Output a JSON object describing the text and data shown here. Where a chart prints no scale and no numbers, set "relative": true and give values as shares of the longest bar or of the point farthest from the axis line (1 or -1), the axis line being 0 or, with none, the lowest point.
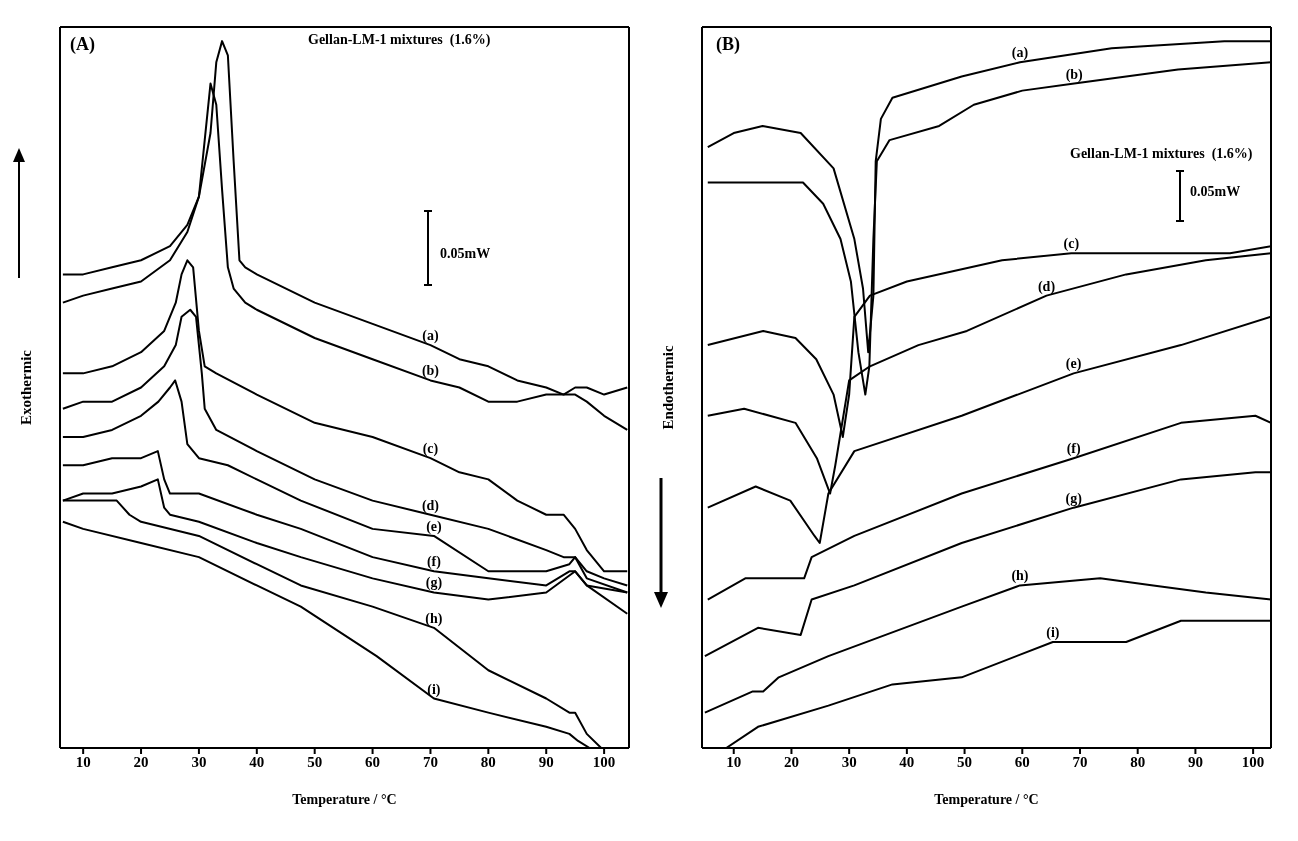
{
  "chart_data": [
    {
      "type": "line",
      "title": "(A)",
      "xlabel": "Temperature / °C",
      "ylabel": "Exothermic",
      "annotations": [
        "Gellan-LM-1 mixtures  (1.6%)",
        "0.05mW"
      ],
      "relative": true,
      "tick_labels": "x",
      "xlim": [
        6,
        104.3
      ],
      "xticks": [
        10,
        20,
        30,
        40,
        50,
        60,
        70,
        80,
        90,
        100
      ],
      "series": [
        {
          "name": "(a)",
          "color": "#000000",
          "x": [
            6.5,
            10,
            15,
            20,
            25,
            28,
            30,
            32,
            33,
            34,
            35,
            36,
            37,
            38,
            40,
            50,
            60,
            70,
            75,
            80,
            85,
            90,
            93,
            95,
            97,
            100,
            104
          ],
          "values": [
            0.67,
            0.67,
            0.68,
            0.69,
            0.71,
            0.74,
            0.78,
            0.87,
            0.97,
            1.0,
            0.98,
            0.83,
            0.69,
            0.68,
            0.67,
            0.63,
            0.6,
            0.57,
            0.55,
            0.54,
            0.52,
            0.51,
            0.5,
            0.51,
            0.51,
            0.5,
            0.51
          ]
        },
        {
          "name": "(b)",
          "color": "#000000",
          "x": [
            6.5,
            10,
            15,
            20,
            25,
            28,
            30,
            31,
            32,
            33,
            34,
            35,
            36,
            38,
            40,
            50,
            60,
            70,
            75,
            80,
            85,
            90,
            93,
            95,
            97,
            100,
            104
          ],
          "values": [
            0.63,
            0.64,
            0.65,
            0.66,
            0.69,
            0.73,
            0.78,
            0.86,
            0.94,
            0.91,
            0.79,
            0.68,
            0.65,
            0.63,
            0.62,
            0.58,
            0.55,
            0.52,
            0.51,
            0.49,
            0.49,
            0.5,
            0.5,
            0.5,
            0.49,
            0.47,
            0.45
          ]
        },
        {
          "name": "(c)",
          "color": "#000000",
          "x": [
            6.5,
            10,
            15,
            20,
            24,
            26,
            27,
            28,
            29,
            30,
            31,
            33,
            40,
            50,
            60,
            70,
            75,
            80,
            85,
            90,
            93,
            95,
            97,
            100,
            104
          ],
          "values": [
            0.53,
            0.53,
            0.54,
            0.56,
            0.59,
            0.63,
            0.67,
            0.69,
            0.68,
            0.59,
            0.54,
            0.53,
            0.5,
            0.46,
            0.44,
            0.41,
            0.39,
            0.38,
            0.35,
            0.33,
            0.33,
            0.31,
            0.28,
            0.25,
            0.25
          ]
        },
        {
          "name": "(d)",
          "color": "#000000",
          "x": [
            6.5,
            10,
            15,
            20,
            24,
            26,
            27,
            28.5,
            29.5,
            30.5,
            31,
            33,
            40,
            50,
            60,
            70,
            80,
            90,
            93,
            95,
            97,
            100,
            104
          ],
          "values": [
            0.48,
            0.49,
            0.49,
            0.51,
            0.54,
            0.57,
            0.61,
            0.62,
            0.61,
            0.53,
            0.48,
            0.45,
            0.42,
            0.38,
            0.35,
            0.33,
            0.31,
            0.28,
            0.27,
            0.27,
            0.25,
            0.24,
            0.23
          ]
        },
        {
          "name": "(e)",
          "color": "#000000",
          "x": [
            6.5,
            10,
            15,
            20,
            23,
            25,
            25.9,
            27,
            28,
            30,
            35,
            40,
            47.6,
            60,
            70.6,
            80,
            90,
            94,
            95,
            97,
            104
          ],
          "values": [
            0.44,
            0.44,
            0.45,
            0.47,
            0.49,
            0.51,
            0.52,
            0.49,
            0.43,
            0.41,
            0.4,
            0.38,
            0.35,
            0.31,
            0.3,
            0.25,
            0.25,
            0.26,
            0.27,
            0.24,
            0.22
          ]
        },
        {
          "name": "(f)",
          "color": "#000000",
          "x": [
            6.5,
            10,
            15,
            20,
            22.9,
            24,
            25,
            30,
            40,
            47.6,
            60,
            70.6,
            80,
            90,
            94,
            95,
            97,
            104
          ],
          "values": [
            0.4,
            0.4,
            0.41,
            0.41,
            0.42,
            0.38,
            0.36,
            0.36,
            0.33,
            0.31,
            0.27,
            0.25,
            0.24,
            0.23,
            0.25,
            0.25,
            0.23,
            0.22
          ]
        },
        {
          "name": "(g)",
          "color": "#000000",
          "x": [
            6.5,
            10,
            15,
            20,
            22.9,
            24,
            25,
            30,
            40,
            47.6,
            60,
            70.6,
            80,
            90,
            95,
            97,
            104
          ],
          "values": [
            0.35,
            0.36,
            0.36,
            0.37,
            0.38,
            0.34,
            0.33,
            0.32,
            0.29,
            0.27,
            0.24,
            0.22,
            0.21,
            0.22,
            0.25,
            0.23,
            0.19
          ]
        },
        {
          "name": "(h)",
          "color": "#000000",
          "x": [
            6.5,
            10,
            15.8,
            18,
            20,
            30,
            40,
            47.6,
            60,
            70.6,
            80,
            90,
            94,
            95,
            97,
            99.5
          ],
          "values": [
            0.35,
            0.35,
            0.35,
            0.33,
            0.32,
            0.3,
            0.26,
            0.23,
            0.2,
            0.17,
            0.11,
            0.07,
            0.05,
            0.05,
            0.02,
            0
          ]
        },
        {
          "name": "(i)",
          "color": "#000000",
          "x": [
            6.5,
            10,
            20,
            30,
            40,
            47.6,
            60.7,
            70.6,
            80,
            90,
            94,
            95.5,
            97.5
          ],
          "values": [
            0.32,
            0.31,
            0.29,
            0.27,
            0.23,
            0.2,
            0.13,
            0.07,
            0.05,
            0.03,
            0.02,
            0.01,
            0
          ]
        }
      ]
    },
    {
      "type": "line",
      "title": "(B)",
      "xlabel": "Temperature / °C",
      "ylabel": "Endothermic",
      "annotations": [
        "Gellan-LM-1 mixtures  (1.6%)",
        "0.05mW"
      ],
      "relative": true,
      "tick_labels": "x",
      "xlim": [
        4.5,
        103.1
      ],
      "xticks": [
        10,
        20,
        30,
        40,
        50,
        60,
        70,
        80,
        90,
        100
      ],
      "series": [
        {
          "name": "(a)",
          "color": "#000000",
          "x": [
            5.5,
            10,
            15,
            21.6,
            27.3,
            30.9,
            32.4,
            33.3,
            34.2,
            34.6,
            35.5,
            37.5,
            49.5,
            59.6,
            75.5,
            95,
            100.4,
            103.1
          ],
          "values": [
            0.85,
            0.87,
            0.88,
            0.87,
            0.82,
            0.72,
            0.65,
            0.56,
            0.64,
            0.83,
            0.89,
            0.92,
            0.95,
            0.97,
            0.99,
            1.0,
            1.0,
            1.0
          ]
        },
        {
          "name": "(b)",
          "color": "#000000",
          "x": [
            5.5,
            10,
            17,
            22,
            25.5,
            28.5,
            30.3,
            31.6,
            32.8,
            33.5,
            34.2,
            34.8,
            37,
            45.6,
            51.6,
            60,
            69,
            87,
            103.1
          ],
          "values": [
            0.8,
            0.8,
            0.8,
            0.8,
            0.77,
            0.72,
            0.66,
            0.56,
            0.5,
            0.54,
            0.72,
            0.83,
            0.86,
            0.88,
            0.91,
            0.93,
            0.94,
            0.96,
            0.97
          ]
        },
        {
          "name": "(c)",
          "color": "#000000",
          "x": [
            5.5,
            15.1,
            20.7,
            24.3,
            27.3,
            28.9,
            30,
            30.9,
            33.6,
            40,
            56.5,
            68.5,
            87,
            96,
            103.1
          ],
          "values": [
            0.57,
            0.59,
            0.58,
            0.55,
            0.5,
            0.44,
            0.5,
            0.61,
            0.64,
            0.66,
            0.69,
            0.7,
            0.7,
            0.7,
            0.71
          ]
        },
        {
          "name": "(d)",
          "color": "#000000",
          "x": [
            5.5,
            11.8,
            20.7,
            24.4,
            26.7,
            27.6,
            30,
            33.6,
            42,
            50.4,
            64.2,
            78,
            91.8,
            103.1
          ],
          "values": [
            0.47,
            0.48,
            0.46,
            0.41,
            0.36,
            0.4,
            0.52,
            0.54,
            0.57,
            0.59,
            0.64,
            0.67,
            0.69,
            0.7
          ]
        },
        {
          "name": "(e)",
          "color": "#000000",
          "x": [
            5.5,
            13.8,
            19.8,
            24,
            24.9,
            26.4,
            30.9,
            49.5,
            68.9,
            87.5,
            103.1
          ],
          "values": [
            0.34,
            0.37,
            0.35,
            0.3,
            0.29,
            0.36,
            0.42,
            0.47,
            0.53,
            0.57,
            0.61
          ]
        },
        {
          "name": "(f)",
          "color": "#000000",
          "x": [
            5.5,
            12,
            19.8,
            22.2,
            23.5,
            30.9,
            49.5,
            68.9,
            87.5,
            100.4,
            103.1
          ],
          "values": [
            0.21,
            0.24,
            0.24,
            0.24,
            0.27,
            0.3,
            0.36,
            0.41,
            0.46,
            0.47,
            0.46
          ]
        },
        {
          "name": "(g)",
          "color": "#000000",
          "x": [
            5,
            14.2,
            21.6,
            23.5,
            30.9,
            49.5,
            68.9,
            87.5,
            100.4,
            103.1
          ],
          "values": [
            0.13,
            0.17,
            0.16,
            0.21,
            0.23,
            0.29,
            0.34,
            0.38,
            0.39,
            0.39
          ]
        },
        {
          "name": "(h)",
          "color": "#000000",
          "x": [
            5,
            13.3,
            15.1,
            17.8,
            26.4,
            49.5,
            59.6,
            73.5,
            82.7,
            91.8,
            103.1
          ],
          "values": [
            0.05,
            0.08,
            0.08,
            0.1,
            0.13,
            0.2,
            0.23,
            0.24,
            0.23,
            0.22,
            0.21
          ]
        },
        {
          "name": "(i)",
          "color": "#000000",
          "x": [
            8.7,
            14.2,
            26.4,
            37.5,
            49.5,
            65.3,
            78,
            87.5,
            103.1
          ],
          "values": [
            0,
            0.03,
            0.06,
            0.09,
            0.1,
            0.15,
            0.15,
            0.18,
            0.18
          ]
        }
      ]
    }
  ]
}
